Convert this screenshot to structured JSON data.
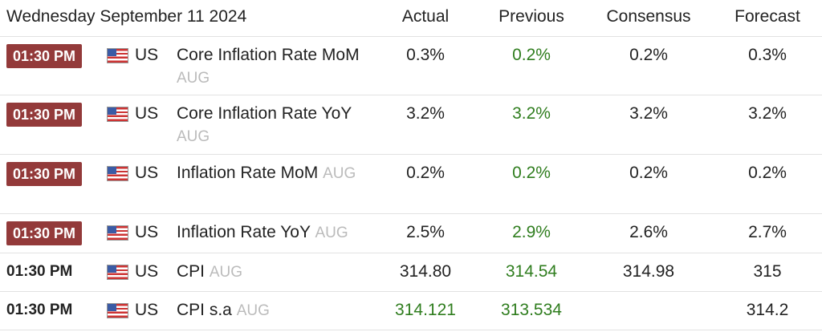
{
  "header": {
    "date": "Wednesday September 11 2024",
    "columns": [
      "Actual",
      "Previous",
      "Consensus",
      "Forecast"
    ]
  },
  "table": {
    "rows": [
      {
        "time": "01:30 PM",
        "highlight": true,
        "country": "US",
        "event": "Core Inflation Rate MoM",
        "period": "AUG",
        "actual": "0.3%",
        "previous": "0.2%",
        "consensus": "0.2%",
        "forecast": "0.3%",
        "previous_color": "#2f7d1e"
      },
      {
        "time": "01:30 PM",
        "highlight": true,
        "country": "US",
        "event": "Core Inflation Rate YoY",
        "period": "AUG",
        "actual": "3.2%",
        "previous": "3.2%",
        "consensus": "3.2%",
        "forecast": "3.2%",
        "previous_color": "#2f7d1e"
      },
      {
        "time": "01:30 PM",
        "highlight": true,
        "country": "US",
        "event": "Inflation Rate MoM",
        "period": "AUG",
        "actual": "0.2%",
        "previous": "0.2%",
        "consensus": "0.2%",
        "forecast": "0.2%",
        "previous_color": "#2f7d1e"
      },
      {
        "time": "01:30 PM",
        "highlight": true,
        "country": "US",
        "event": "Inflation Rate YoY",
        "period": "AUG",
        "actual": "2.5%",
        "previous": "2.9%",
        "consensus": "2.6%",
        "forecast": "2.7%",
        "previous_color": "#2f7d1e"
      },
      {
        "time": "01:30 PM",
        "highlight": false,
        "country": "US",
        "event": "CPI",
        "period": "AUG",
        "actual": "314.80",
        "previous": "314.54",
        "consensus": "314.98",
        "forecast": "315",
        "previous_color": "#2f7d1e"
      },
      {
        "time": "01:30 PM",
        "highlight": false,
        "country": "US",
        "event": "CPI s.a",
        "period": "AUG",
        "actual": "314.121",
        "previous": "313.534",
        "forecast": "314.2",
        "actual_color": "#2f7d1e",
        "previous_color": "#2f7d1e"
      }
    ]
  }
}
